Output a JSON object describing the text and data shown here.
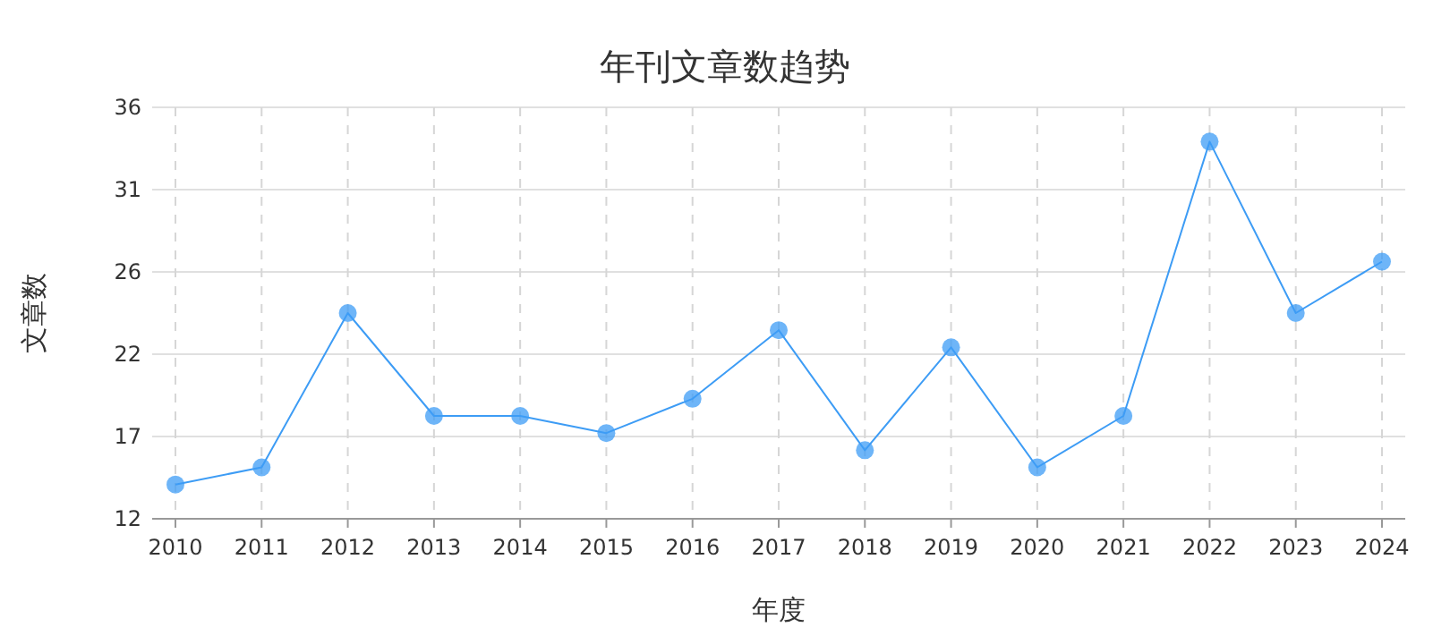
{
  "chart_data": {
    "type": "line",
    "title": "年刊文章数趋势",
    "xlabel": "年度",
    "ylabel": "文章数",
    "categories": [
      "2010",
      "2011",
      "2012",
      "2013",
      "2014",
      "2015",
      "2016",
      "2017",
      "2018",
      "2019",
      "2020",
      "2021",
      "2022",
      "2023",
      "2024"
    ],
    "series": [
      {
        "color": "#3d9cf5",
        "values": [
          14,
          15,
          24,
          18,
          18,
          17,
          19,
          23,
          16,
          22,
          15,
          18,
          34,
          24,
          27
        ]
      }
    ],
    "ylim": [
      12,
      36
    ],
    "yticks": [
      12,
      {
        "value": 16.8,
        "label": "17"
      },
      {
        "value": 21.6,
        "label": "22"
      },
      {
        "value": 26.4,
        "label": "26"
      },
      {
        "value": 31.2,
        "label": "31"
      },
      36
    ],
    "grid": true,
    "marker": "circle",
    "line_style": "solid"
  }
}
